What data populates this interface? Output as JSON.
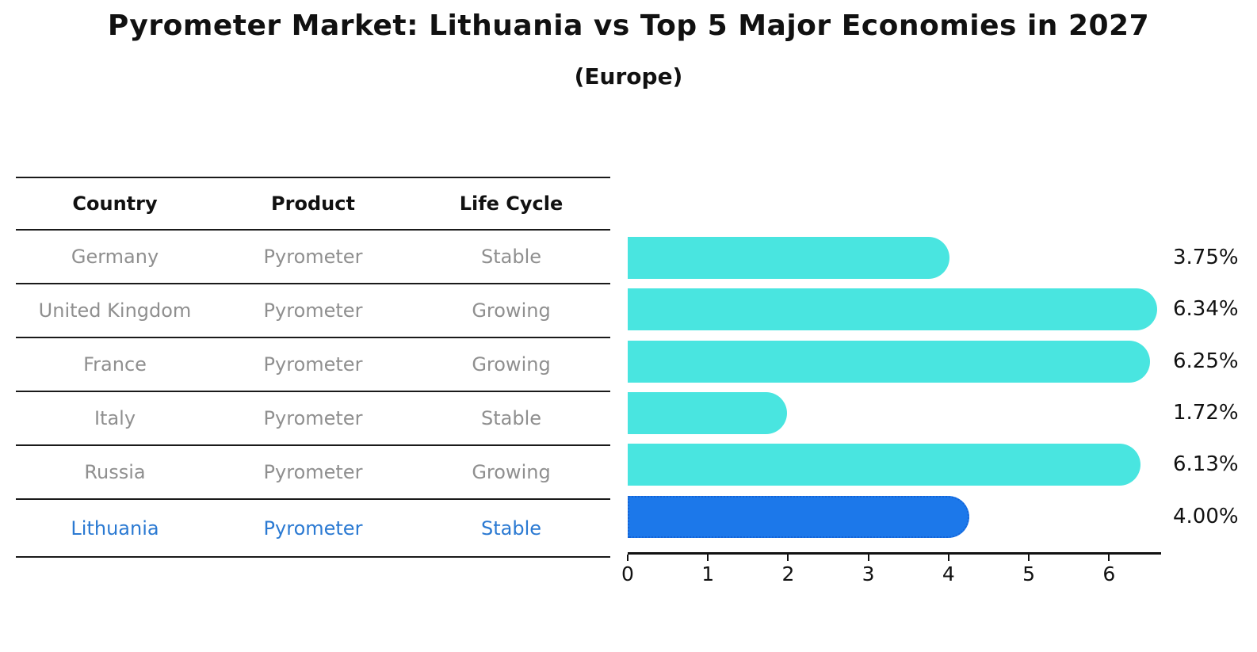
{
  "table": {
    "columns": [
      "Country",
      "Product",
      "Life Cycle"
    ],
    "rows": [
      {
        "country": "Germany",
        "product": "Pyrometer",
        "life_cycle": "Stable",
        "highlight": false
      },
      {
        "country": "United Kingdom",
        "product": "Pyrometer",
        "life_cycle": "Growing",
        "highlight": false
      },
      {
        "country": "France",
        "product": "Pyrometer",
        "life_cycle": "Growing",
        "highlight": false
      },
      {
        "country": "Italy",
        "product": "Pyrometer",
        "life_cycle": "Stable",
        "highlight": false
      },
      {
        "country": "Russia",
        "product": "Pyrometer",
        "life_cycle": "Growing",
        "highlight": false
      },
      {
        "country": "Lithuania",
        "product": "Pyrometer",
        "life_cycle": "Stable",
        "highlight": true
      }
    ]
  },
  "chart_data": {
    "type": "bar",
    "orientation": "horizontal",
    "title": "Pyrometer Market: Lithuania vs Top 5 Major Economies in 2027",
    "subtitle": "(Europe)",
    "categories": [
      "Germany",
      "United Kingdom",
      "France",
      "Italy",
      "Russia",
      "Lithuania"
    ],
    "values": [
      3.75,
      6.34,
      6.25,
      1.72,
      6.13,
      4.0
    ],
    "value_labels": [
      "3.75%",
      "6.34%",
      "6.25%",
      "1.72%",
      "6.13%",
      "4.00%"
    ],
    "x_ticks": [
      0,
      1,
      2,
      3,
      4,
      5,
      6
    ],
    "xlim": [
      0,
      6.6
    ],
    "xlabel": "",
    "ylabel": "",
    "grid": false,
    "legend": false,
    "highlight_category": "Lithuania",
    "colors": {
      "bar_default": "#49e5e0",
      "bar_highlight": "#1c78ea",
      "highlight_border": "#1464d8",
      "row_text": "#8f8f8f",
      "highlight_text": "#2a79d2",
      "line_color": "#1a1a1a",
      "label_text": "#111111",
      "background": "#ffffff"
    }
  }
}
